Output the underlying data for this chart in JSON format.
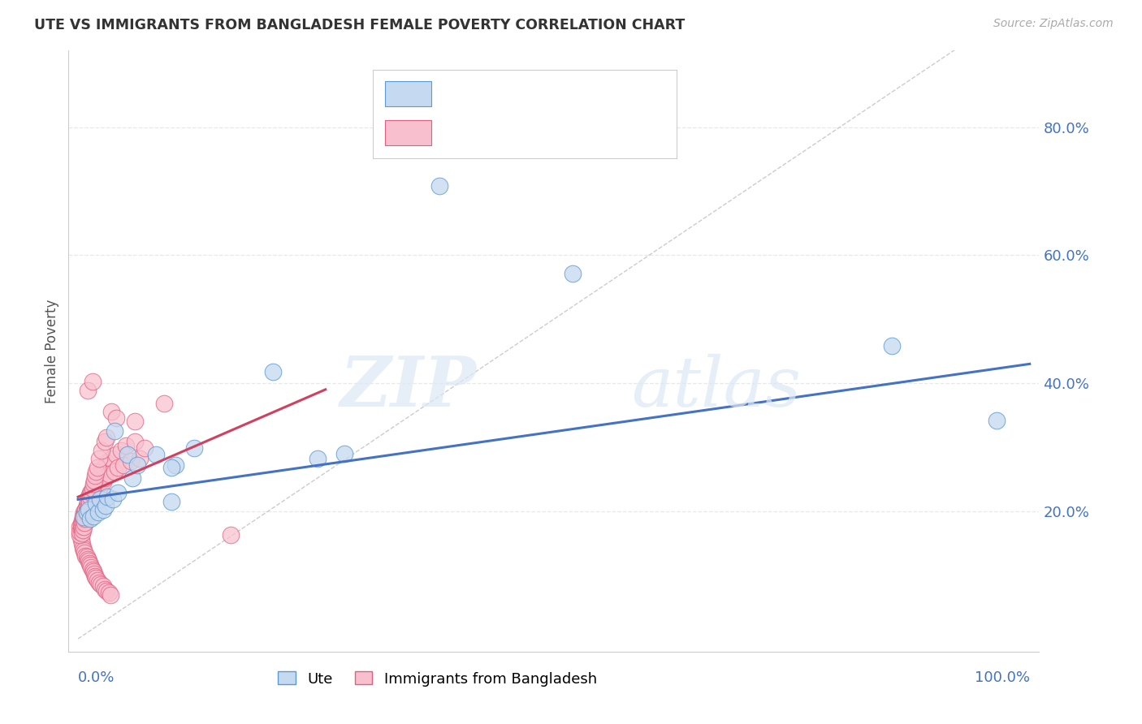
{
  "title": "UTE VS IMMIGRANTS FROM BANGLADESH FEMALE POVERTY CORRELATION CHART",
  "source": "Source: ZipAtlas.com",
  "ylabel": "Female Poverty",
  "ytick_labels": [
    "20.0%",
    "40.0%",
    "60.0%",
    "80.0%"
  ],
  "ytick_values": [
    0.2,
    0.4,
    0.6,
    0.8
  ],
  "xlim": [
    -0.01,
    1.01
  ],
  "ylim": [
    -0.02,
    0.92
  ],
  "watermark_zip": "ZIP",
  "watermark_atlas": "atlas",
  "color_ute_fill": "#c5d9f0",
  "color_ute_edge": "#5b9bd5",
  "color_bdesh_fill": "#f8c0ce",
  "color_bdesh_edge": "#e06080",
  "color_ute_line": "#4472c4",
  "color_bdesh_line": "#d04060",
  "color_diag": "#cccccc",
  "color_grid": "#e8e8e8",
  "color_axis_text": "#4472c4",
  "color_title": "#333333",
  "color_source": "#aaaaaa",
  "color_legend_black": "#333333",
  "ute_x": [
    0.006,
    0.009,
    0.011,
    0.013,
    0.016,
    0.019,
    0.021,
    0.023,
    0.026,
    0.029,
    0.031,
    0.037,
    0.042,
    0.052,
    0.057,
    0.062,
    0.082,
    0.102,
    0.122,
    0.098,
    0.205,
    0.252,
    0.098,
    0.038,
    0.28,
    0.38,
    0.52,
    0.855,
    0.965
  ],
  "ute_y": [
    0.19,
    0.198,
    0.202,
    0.188,
    0.192,
    0.212,
    0.198,
    0.218,
    0.202,
    0.208,
    0.222,
    0.218,
    0.228,
    0.288,
    0.252,
    0.272,
    0.288,
    0.272,
    0.298,
    0.215,
    0.418,
    0.282,
    0.268,
    0.325,
    0.29,
    0.708,
    0.572,
    0.458,
    0.342
  ],
  "bdesh_x": [
    0.002,
    0.003,
    0.003,
    0.004,
    0.004,
    0.005,
    0.005,
    0.006,
    0.006,
    0.007,
    0.007,
    0.008,
    0.008,
    0.009,
    0.009,
    0.01,
    0.01,
    0.011,
    0.011,
    0.012,
    0.012,
    0.013,
    0.013,
    0.014,
    0.015,
    0.015,
    0.016,
    0.017,
    0.018,
    0.019,
    0.02,
    0.021,
    0.022,
    0.023,
    0.025,
    0.026,
    0.027,
    0.028,
    0.03,
    0.032,
    0.035,
    0.038,
    0.04,
    0.042,
    0.045,
    0.048,
    0.05,
    0.055,
    0.06,
    0.065,
    0.003,
    0.004,
    0.005,
    0.006,
    0.007,
    0.008,
    0.009,
    0.01,
    0.011,
    0.012,
    0.013,
    0.014,
    0.015,
    0.016,
    0.017,
    0.018,
    0.019,
    0.02,
    0.022,
    0.024,
    0.026,
    0.028,
    0.03,
    0.032,
    0.034,
    0.07,
    0.16
  ],
  "bdesh_y": [
    0.175,
    0.168,
    0.18,
    0.172,
    0.185,
    0.178,
    0.192,
    0.185,
    0.198,
    0.18,
    0.195,
    0.188,
    0.202,
    0.192,
    0.208,
    0.195,
    0.21,
    0.198,
    0.215,
    0.205,
    0.222,
    0.21,
    0.228,
    0.215,
    0.232,
    0.218,
    0.238,
    0.225,
    0.242,
    0.228,
    0.248,
    0.232,
    0.255,
    0.238,
    0.262,
    0.245,
    0.268,
    0.252,
    0.275,
    0.258,
    0.282,
    0.262,
    0.288,
    0.268,
    0.295,
    0.272,
    0.302,
    0.278,
    0.308,
    0.282,
    0.155,
    0.148,
    0.142,
    0.138,
    0.135,
    0.13,
    0.128,
    0.125,
    0.122,
    0.118,
    0.115,
    0.112,
    0.108,
    0.105,
    0.102,
    0.098,
    0.095,
    0.092,
    0.088,
    0.085,
    0.082,
    0.078,
    0.075,
    0.072,
    0.068,
    0.298,
    0.162
  ],
  "bdesh_extra_x": [
    0.002,
    0.002,
    0.003,
    0.003,
    0.004,
    0.004,
    0.005,
    0.005,
    0.006,
    0.006,
    0.007,
    0.007,
    0.008,
    0.008,
    0.009,
    0.009,
    0.01,
    0.01,
    0.011,
    0.011,
    0.012,
    0.013,
    0.014,
    0.015,
    0.016,
    0.017,
    0.018,
    0.019,
    0.02,
    0.022,
    0.025,
    0.028,
    0.03,
    0.035,
    0.04,
    0.01,
    0.015,
    0.06,
    0.09
  ],
  "bdesh_extra_y": [
    0.162,
    0.168,
    0.172,
    0.178,
    0.165,
    0.175,
    0.17,
    0.182,
    0.175,
    0.188,
    0.182,
    0.195,
    0.188,
    0.202,
    0.195,
    0.208,
    0.202,
    0.215,
    0.208,
    0.222,
    0.215,
    0.222,
    0.228,
    0.235,
    0.242,
    0.248,
    0.255,
    0.262,
    0.268,
    0.282,
    0.295,
    0.308,
    0.315,
    0.355,
    0.345,
    0.388,
    0.402,
    0.34,
    0.368
  ]
}
